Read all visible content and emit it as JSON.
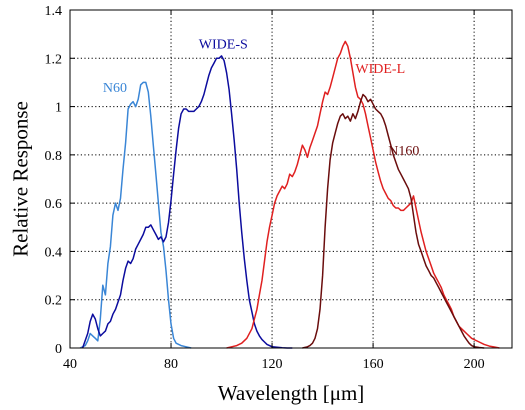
{
  "chart_data": {
    "type": "line",
    "xlabel": "Wavelength [μm]",
    "ylabel": "Relative Response",
    "xlim": [
      40,
      215
    ],
    "ylim": [
      0,
      1.4
    ],
    "xticks": [
      "40",
      "80",
      "120",
      "160",
      "200"
    ],
    "yticks": [
      "0",
      "0.2",
      "0.4",
      "0.6",
      "0.8",
      "1",
      "1.2",
      "1.4"
    ],
    "grid": true,
    "series": [
      {
        "name": "N60",
        "color": "#3a86d6",
        "x": [
          44,
          46,
          47,
          48,
          49,
          50,
          51,
          52,
          53,
          54,
          55,
          56,
          57,
          58,
          59,
          60,
          61,
          62,
          63,
          64,
          65,
          66,
          67,
          68,
          69,
          70,
          71,
          72,
          73,
          74,
          75,
          76,
          77,
          78,
          79,
          80,
          81,
          82,
          84,
          86,
          88
        ],
        "values": [
          0,
          0.01,
          0.03,
          0.06,
          0.05,
          0.04,
          0.03,
          0.12,
          0.26,
          0.22,
          0.35,
          0.42,
          0.55,
          0.6,
          0.57,
          0.62,
          0.74,
          0.85,
          0.99,
          1.01,
          1.02,
          1.0,
          1.03,
          1.09,
          1.1,
          1.1,
          1.06,
          0.96,
          0.84,
          0.72,
          0.6,
          0.48,
          0.42,
          0.32,
          0.2,
          0.1,
          0.04,
          0.02,
          0.01,
          0.005,
          0
        ]
      },
      {
        "name": "WIDE-S",
        "color": "#0c0c9e",
        "x": [
          45,
          47,
          48,
          49,
          50,
          51,
          52,
          53,
          54,
          55,
          56,
          57,
          58,
          59,
          60,
          61,
          62,
          63,
          64,
          65,
          66,
          67,
          68,
          69,
          70,
          71,
          72,
          73,
          74,
          75,
          76,
          77,
          78,
          79,
          80,
          81,
          82,
          83,
          84,
          85,
          86,
          87,
          88,
          89,
          90,
          91,
          92,
          93,
          94,
          95,
          96,
          97,
          98,
          99,
          100,
          101,
          102,
          103,
          104,
          105,
          106,
          107,
          108,
          109,
          110,
          111,
          112,
          113,
          114,
          115,
          116,
          117,
          118,
          119,
          120,
          122,
          124,
          126,
          128
        ],
        "values": [
          0,
          0.06,
          0.11,
          0.14,
          0.12,
          0.08,
          0.05,
          0.06,
          0.07,
          0.1,
          0.11,
          0.14,
          0.16,
          0.19,
          0.22,
          0.28,
          0.33,
          0.36,
          0.35,
          0.37,
          0.41,
          0.43,
          0.45,
          0.47,
          0.5,
          0.5,
          0.51,
          0.49,
          0.47,
          0.45,
          0.46,
          0.44,
          0.46,
          0.52,
          0.61,
          0.72,
          0.82,
          0.91,
          0.97,
          0.99,
          0.99,
          0.98,
          0.98,
          0.98,
          0.99,
          1.0,
          1.02,
          1.05,
          1.09,
          1.13,
          1.16,
          1.18,
          1.2,
          1.2,
          1.21,
          1.19,
          1.14,
          1.07,
          0.97,
          0.86,
          0.74,
          0.6,
          0.48,
          0.37,
          0.28,
          0.2,
          0.15,
          0.1,
          0.07,
          0.05,
          0.035,
          0.025,
          0.015,
          0.01,
          0.005,
          0.003,
          0.001,
          0.0,
          0
        ]
      },
      {
        "name": "WIDE-L",
        "color": "#e02020",
        "x": [
          102,
          104,
          106,
          108,
          110,
          112,
          113,
          114,
          115,
          116,
          117,
          118,
          119,
          120,
          121,
          122,
          123,
          124,
          125,
          126,
          127,
          128,
          129,
          130,
          131,
          132,
          133,
          134,
          135,
          136,
          137,
          138,
          139,
          140,
          141,
          142,
          143,
          144,
          145,
          146,
          147,
          148,
          149,
          150,
          151,
          152,
          153,
          154,
          155,
          156,
          157,
          158,
          159,
          160,
          161,
          162,
          163,
          164,
          165,
          166,
          167,
          168,
          169,
          170,
          171,
          172,
          173,
          174,
          175,
          176,
          177,
          178,
          179,
          180,
          181,
          182,
          183,
          184,
          185,
          186,
          187,
          188,
          189,
          190,
          191,
          192,
          193,
          194,
          195,
          196,
          197,
          198,
          199,
          200,
          202,
          204,
          206,
          208,
          210
        ],
        "values": [
          0,
          0.005,
          0.01,
          0.02,
          0.04,
          0.08,
          0.12,
          0.16,
          0.22,
          0.28,
          0.36,
          0.44,
          0.5,
          0.55,
          0.6,
          0.63,
          0.65,
          0.67,
          0.66,
          0.68,
          0.72,
          0.71,
          0.73,
          0.76,
          0.8,
          0.84,
          0.82,
          0.79,
          0.83,
          0.86,
          0.89,
          0.92,
          0.97,
          1.02,
          1.06,
          1.05,
          1.08,
          1.12,
          1.16,
          1.2,
          1.22,
          1.25,
          1.27,
          1.25,
          1.2,
          1.14,
          1.08,
          1.04,
          1.03,
          1.01,
          0.97,
          0.92,
          0.87,
          0.82,
          0.77,
          0.73,
          0.69,
          0.66,
          0.64,
          0.62,
          0.61,
          0.59,
          0.58,
          0.58,
          0.57,
          0.57,
          0.58,
          0.59,
          0.6,
          0.63,
          0.58,
          0.53,
          0.48,
          0.44,
          0.4,
          0.37,
          0.34,
          0.31,
          0.29,
          0.27,
          0.25,
          0.22,
          0.2,
          0.18,
          0.16,
          0.13,
          0.11,
          0.09,
          0.08,
          0.07,
          0.06,
          0.05,
          0.04,
          0.035,
          0.025,
          0.015,
          0.008,
          0.004,
          0
        ]
      },
      {
        "name": "N160",
        "color": "#6a0d0d",
        "x": [
          132,
          134,
          135,
          136,
          137,
          138,
          139,
          140,
          141,
          142,
          143,
          144,
          145,
          146,
          147,
          148,
          149,
          150,
          151,
          152,
          153,
          154,
          155,
          156,
          157,
          158,
          159,
          160,
          161,
          162,
          163,
          164,
          165,
          166,
          167,
          168,
          169,
          170,
          171,
          172,
          173,
          174,
          175,
          176,
          177,
          178,
          179,
          180,
          181,
          182,
          183,
          184,
          185,
          186,
          187,
          188,
          189,
          190,
          191,
          192,
          193,
          194,
          195,
          196,
          197,
          198,
          199,
          200,
          202,
          204
        ],
        "values": [
          0,
          0.005,
          0.01,
          0.02,
          0.04,
          0.08,
          0.16,
          0.3,
          0.5,
          0.66,
          0.78,
          0.85,
          0.89,
          0.93,
          0.96,
          0.97,
          0.95,
          0.96,
          0.94,
          0.97,
          0.95,
          0.98,
          1.02,
          1.05,
          1.04,
          1.02,
          1.03,
          1.01,
          0.99,
          0.98,
          0.97,
          0.95,
          0.92,
          0.88,
          0.84,
          0.8,
          0.77,
          0.74,
          0.72,
          0.7,
          0.68,
          0.66,
          0.62,
          0.55,
          0.48,
          0.43,
          0.4,
          0.37,
          0.34,
          0.32,
          0.3,
          0.29,
          0.27,
          0.25,
          0.23,
          0.21,
          0.19,
          0.17,
          0.15,
          0.13,
          0.11,
          0.09,
          0.07,
          0.05,
          0.035,
          0.02,
          0.01,
          0.005,
          0.002,
          0
        ]
      }
    ],
    "series_labels": [
      {
        "text": "N60",
        "x": 53,
        "y": 1.06,
        "anchor": "start"
      },
      {
        "text": "WIDE-S",
        "x": 91,
        "y": 1.24,
        "anchor": "start"
      },
      {
        "text": "WIDE-L",
        "x": 153,
        "y": 1.14,
        "anchor": "start"
      },
      {
        "text": "N160",
        "x": 166,
        "y": 0.8,
        "anchor": "start"
      }
    ]
  }
}
